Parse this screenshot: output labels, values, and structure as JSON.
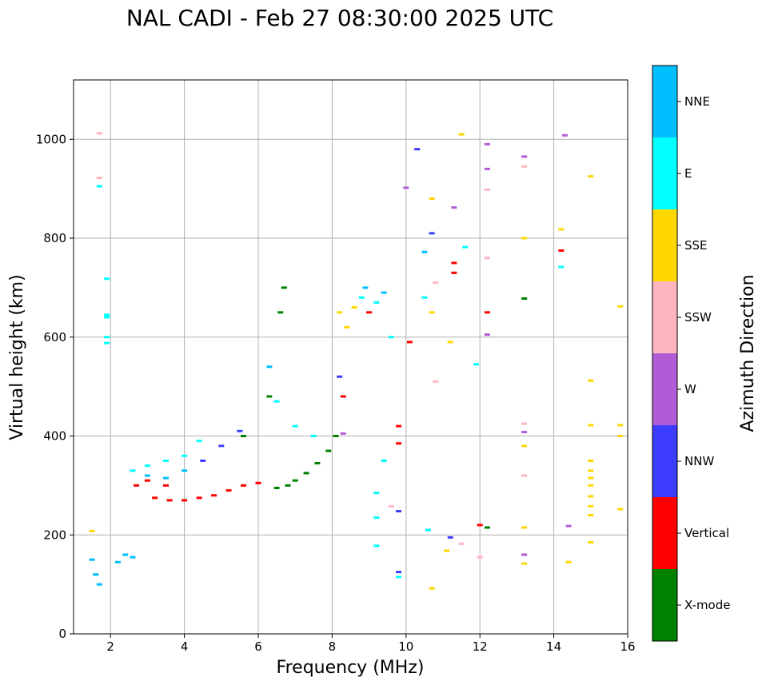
{
  "chart_data": {
    "type": "scatter",
    "title": "NAL CADI - Feb 27 08:30:00 2025 UTC",
    "xlabel": "Frequency (MHz)",
    "ylabel": "Virtual height (km)",
    "xlim": [
      1,
      16
    ],
    "ylim": [
      0,
      1120
    ],
    "xticks": [
      2,
      4,
      6,
      8,
      10,
      12,
      14,
      16
    ],
    "yticks": [
      0,
      200,
      400,
      600,
      800,
      1000
    ],
    "grid": true,
    "colorbar": {
      "title": "Azimuth Direction",
      "categories": [
        {
          "name": "X-mode",
          "color": "#008000"
        },
        {
          "name": "Vertical",
          "color": "#ff0000"
        },
        {
          "name": "NNW",
          "color": "#3c3cff"
        },
        {
          "name": "W",
          "color": "#b05cd6"
        },
        {
          "name": "SSW",
          "color": "#ffb6c1"
        },
        {
          "name": "SSE",
          "color": "#ffd700"
        },
        {
          "name": "E",
          "color": "#00ffff"
        },
        {
          "name": "NNE",
          "color": "#00bfff"
        }
      ]
    },
    "series": [
      {
        "name": "X-mode",
        "points": [
          [
            6.5,
            295
          ],
          [
            6.8,
            300
          ],
          [
            7.0,
            310
          ],
          [
            7.3,
            325
          ],
          [
            7.6,
            345
          ],
          [
            7.9,
            370
          ],
          [
            8.1,
            400
          ],
          [
            6.6,
            650
          ],
          [
            6.7,
            700
          ],
          [
            12.2,
            215
          ],
          [
            13.2,
            678
          ],
          [
            5.6,
            400
          ],
          [
            6.3,
            480
          ]
        ]
      },
      {
        "name": "Vertical",
        "points": [
          [
            3.2,
            275
          ],
          [
            3.6,
            270
          ],
          [
            4.0,
            270
          ],
          [
            4.4,
            275
          ],
          [
            4.8,
            280
          ],
          [
            5.2,
            290
          ],
          [
            5.6,
            300
          ],
          [
            6.0,
            305
          ],
          [
            3.0,
            310
          ],
          [
            3.5,
            300
          ],
          [
            2.7,
            300
          ],
          [
            8.3,
            480
          ],
          [
            9.0,
            650
          ],
          [
            10.1,
            590
          ],
          [
            11.3,
            730
          ],
          [
            11.3,
            750
          ],
          [
            12.2,
            650
          ],
          [
            14.2,
            775
          ],
          [
            9.8,
            420
          ],
          [
            9.8,
            385
          ],
          [
            12.0,
            220
          ]
        ]
      },
      {
        "name": "NNW",
        "points": [
          [
            4.5,
            350
          ],
          [
            5.0,
            380
          ],
          [
            5.5,
            410
          ],
          [
            8.2,
            520
          ],
          [
            10.7,
            810
          ],
          [
            11.2,
            195
          ],
          [
            9.8,
            248
          ],
          [
            9.8,
            125
          ],
          [
            10.3,
            980
          ]
        ]
      },
      {
        "name": "W",
        "points": [
          [
            8.3,
            405
          ],
          [
            11.3,
            862
          ],
          [
            12.2,
            990
          ],
          [
            12.2,
            940
          ],
          [
            12.2,
            605
          ],
          [
            13.2,
            965
          ],
          [
            13.2,
            408
          ],
          [
            13.2,
            160
          ],
          [
            14.3,
            1008
          ],
          [
            14.4,
            218
          ],
          [
            10.0,
            902
          ]
        ]
      },
      {
        "name": "SSW",
        "points": [
          [
            1.7,
            1012
          ],
          [
            1.7,
            922
          ],
          [
            10.8,
            710
          ],
          [
            10.8,
            510
          ],
          [
            12.2,
            898
          ],
          [
            12.2,
            760
          ],
          [
            13.2,
            945
          ],
          [
            13.2,
            425
          ],
          [
            13.2,
            320
          ],
          [
            12.0,
            155
          ],
          [
            11.5,
            182
          ],
          [
            9.6,
            258
          ]
        ]
      },
      {
        "name": "SSE",
        "points": [
          [
            8.2,
            650
          ],
          [
            8.4,
            620
          ],
          [
            8.6,
            660
          ],
          [
            10.7,
            880
          ],
          [
            10.7,
            650
          ],
          [
            11.2,
            590
          ],
          [
            11.5,
            1010
          ],
          [
            13.2,
            800
          ],
          [
            13.2,
            380
          ],
          [
            13.2,
            215
          ],
          [
            13.2,
            142
          ],
          [
            14.2,
            818
          ],
          [
            14.4,
            145
          ],
          [
            15.0,
            925
          ],
          [
            15.0,
            512
          ],
          [
            15.0,
            422
          ],
          [
            15.0,
            350
          ],
          [
            15.0,
            330
          ],
          [
            15.0,
            315
          ],
          [
            15.0,
            300
          ],
          [
            15.0,
            278
          ],
          [
            15.0,
            258
          ],
          [
            15.0,
            240
          ],
          [
            15.0,
            185
          ],
          [
            15.8,
            662
          ],
          [
            15.8,
            422
          ],
          [
            15.8,
            400
          ],
          [
            15.8,
            252
          ],
          [
            10.7,
            92
          ],
          [
            1.5,
            208
          ],
          [
            11.1,
            168
          ]
        ]
      },
      {
        "name": "E",
        "points": [
          [
            1.7,
            905
          ],
          [
            1.9,
            718
          ],
          [
            1.9,
            645
          ],
          [
            1.9,
            640
          ],
          [
            1.9,
            600
          ],
          [
            1.9,
            588
          ],
          [
            2.6,
            330
          ],
          [
            3.0,
            340
          ],
          [
            3.5,
            350
          ],
          [
            4.0,
            360
          ],
          [
            4.4,
            390
          ],
          [
            6.5,
            470
          ],
          [
            7.0,
            420
          ],
          [
            7.5,
            400
          ],
          [
            8.8,
            680
          ],
          [
            9.2,
            670
          ],
          [
            9.6,
            600
          ],
          [
            9.4,
            350
          ],
          [
            9.2,
            285
          ],
          [
            9.2,
            235
          ],
          [
            9.2,
            178
          ],
          [
            9.8,
            115
          ],
          [
            10.5,
            680
          ],
          [
            10.6,
            210
          ],
          [
            11.6,
            782
          ],
          [
            11.9,
            545
          ],
          [
            14.2,
            742
          ]
        ]
      },
      {
        "name": "NNE",
        "points": [
          [
            1.5,
            150
          ],
          [
            1.6,
            120
          ],
          [
            1.7,
            100
          ],
          [
            2.2,
            145
          ],
          [
            2.4,
            160
          ],
          [
            2.6,
            155
          ],
          [
            3.0,
            320
          ],
          [
            3.5,
            315
          ],
          [
            4.0,
            330
          ],
          [
            6.3,
            540
          ],
          [
            8.9,
            700
          ],
          [
            9.4,
            690
          ],
          [
            10.5,
            772
          ]
        ]
      }
    ]
  }
}
